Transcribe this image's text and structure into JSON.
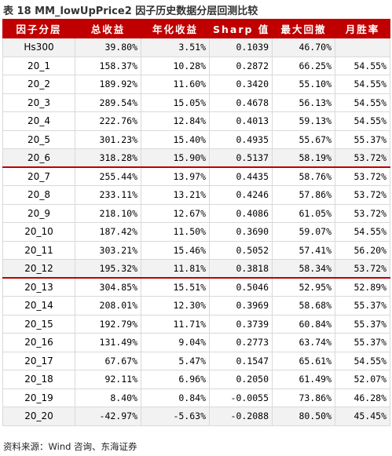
{
  "caption": "表 18 MM_lowUpPrice2 因子历史数据分层回测比较",
  "table": {
    "headers": [
      "因子分层",
      "总收益",
      "年化收益",
      "Sharp 值",
      "最大回撤",
      "月胜率"
    ],
    "rows": [
      {
        "name": "Hs300",
        "total": "39.80%",
        "annual": "3.51%",
        "sharp": "0.1039",
        "mdd": "46.70%",
        "win": ""
      },
      {
        "name": "20_1",
        "total": "158.37%",
        "annual": "10.28%",
        "sharp": "0.2872",
        "mdd": "66.25%",
        "win": "54.55%"
      },
      {
        "name": "20_2",
        "total": "189.92%",
        "annual": "11.60%",
        "sharp": "0.3420",
        "mdd": "55.10%",
        "win": "54.55%"
      },
      {
        "name": "20_3",
        "total": "289.54%",
        "annual": "15.05%",
        "sharp": "0.4678",
        "mdd": "56.13%",
        "win": "54.55%"
      },
      {
        "name": "20_4",
        "total": "222.76%",
        "annual": "12.84%",
        "sharp": "0.4013",
        "mdd": "59.13%",
        "win": "54.55%"
      },
      {
        "name": "20_5",
        "total": "301.23%",
        "annual": "15.40%",
        "sharp": "0.4935",
        "mdd": "55.67%",
        "win": "55.37%"
      },
      {
        "name": "20_6",
        "total": "318.28%",
        "annual": "15.90%",
        "sharp": "0.5137",
        "mdd": "58.19%",
        "win": "53.72%"
      },
      {
        "name": "20_7",
        "total": "255.44%",
        "annual": "13.97%",
        "sharp": "0.4435",
        "mdd": "58.76%",
        "win": "53.72%"
      },
      {
        "name": "20_8",
        "total": "233.11%",
        "annual": "13.21%",
        "sharp": "0.4246",
        "mdd": "57.86%",
        "win": "53.72%"
      },
      {
        "name": "20_9",
        "total": "218.10%",
        "annual": "12.67%",
        "sharp": "0.4086",
        "mdd": "61.05%",
        "win": "53.72%"
      },
      {
        "name": "20_10",
        "total": "187.42%",
        "annual": "11.50%",
        "sharp": "0.3690",
        "mdd": "59.07%",
        "win": "54.55%"
      },
      {
        "name": "20_11",
        "total": "303.21%",
        "annual": "15.46%",
        "sharp": "0.5052",
        "mdd": "57.41%",
        "win": "56.20%"
      },
      {
        "name": "20_12",
        "total": "195.32%",
        "annual": "11.81%",
        "sharp": "0.3818",
        "mdd": "58.34%",
        "win": "53.72%"
      },
      {
        "name": "20_13",
        "total": "304.85%",
        "annual": "15.51%",
        "sharp": "0.5046",
        "mdd": "52.95%",
        "win": "52.89%"
      },
      {
        "name": "20_14",
        "total": "208.01%",
        "annual": "12.30%",
        "sharp": "0.3969",
        "mdd": "58.68%",
        "win": "55.37%"
      },
      {
        "name": "20_15",
        "total": "192.79%",
        "annual": "11.71%",
        "sharp": "0.3739",
        "mdd": "60.84%",
        "win": "55.37%"
      },
      {
        "name": "20_16",
        "total": "131.49%",
        "annual": "9.04%",
        "sharp": "0.2773",
        "mdd": "63.74%",
        "win": "55.37%"
      },
      {
        "name": "20_17",
        "total": "67.67%",
        "annual": "5.47%",
        "sharp": "0.1547",
        "mdd": "65.61%",
        "win": "54.55%"
      },
      {
        "name": "20_18",
        "total": "92.11%",
        "annual": "6.96%",
        "sharp": "0.2050",
        "mdd": "61.49%",
        "win": "52.07%"
      },
      {
        "name": "20_19",
        "total": "8.40%",
        "annual": "0.84%",
        "sharp": "-0.0055",
        "mdd": "73.86%",
        "win": "46.28%"
      },
      {
        "name": "20_20",
        "total": "-42.97%",
        "annual": "-5.63%",
        "sharp": "-0.2088",
        "mdd": "80.50%",
        "win": "45.45%"
      }
    ]
  },
  "source": "资料来源：Wind 咨询、东海证券",
  "colors": {
    "header_bg": "#c00000",
    "separator": "#c00000",
    "alt_row": "#f2f2f2"
  }
}
